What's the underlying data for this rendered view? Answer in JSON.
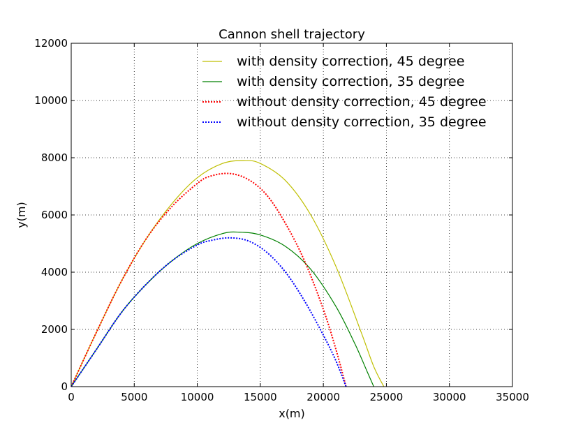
{
  "chart_data": {
    "type": "line",
    "title": "Cannon shell trajectory",
    "xlabel": "x(m)",
    "ylabel": "y(m)",
    "xlim": [
      0,
      35000
    ],
    "ylim": [
      0,
      12000
    ],
    "xticks": [
      0,
      5000,
      10000,
      15000,
      20000,
      25000,
      30000,
      35000
    ],
    "yticks": [
      0,
      2000,
      4000,
      6000,
      8000,
      10000,
      12000
    ],
    "grid": true,
    "legend_position": "top-right",
    "series": [
      {
        "name": "with density correction, 45 degree",
        "color": "#bfbf00",
        "style": "solid",
        "x": [
          0,
          2000,
          4000,
          6000,
          8000,
          10000,
          12000,
          13700,
          15000,
          17000,
          19000,
          21000,
          23000,
          24000,
          24800
        ],
        "y": [
          0,
          1900,
          3700,
          5200,
          6400,
          7300,
          7800,
          7900,
          7800,
          7200,
          6000,
          4200,
          1900,
          700,
          0
        ]
      },
      {
        "name": "with density correction, 35 degree",
        "color": "#008000",
        "style": "solid",
        "x": [
          0,
          2000,
          4000,
          6000,
          8000,
          10000,
          12000,
          13300,
          15000,
          17000,
          19000,
          21000,
          22500,
          23500,
          24000
        ],
        "y": [
          0,
          1300,
          2600,
          3600,
          4400,
          5000,
          5350,
          5400,
          5300,
          4900,
          4100,
          2800,
          1500,
          500,
          0
        ]
      },
      {
        "name": "without density correction, 45 degree",
        "color": "#ff0000",
        "style": "dotted",
        "x": [
          0,
          2000,
          4000,
          6000,
          8000,
          10000,
          11000,
          12500,
          14000,
          15500,
          17000,
          18500,
          20000,
          21000,
          21800
        ],
        "y": [
          0,
          1900,
          3700,
          5200,
          6300,
          7100,
          7350,
          7450,
          7250,
          6700,
          5700,
          4400,
          2700,
          1300,
          0
        ]
      },
      {
        "name": "without density correction, 35 degree",
        "color": "#0000ff",
        "style": "dotted",
        "x": [
          0,
          2000,
          4000,
          6000,
          8000,
          10000,
          11000,
          12500,
          14000,
          15500,
          17000,
          18500,
          20000,
          21000,
          21800
        ],
        "y": [
          0,
          1300,
          2600,
          3600,
          4400,
          4950,
          5100,
          5200,
          5100,
          4700,
          4000,
          3000,
          1800,
          900,
          0
        ]
      }
    ]
  }
}
